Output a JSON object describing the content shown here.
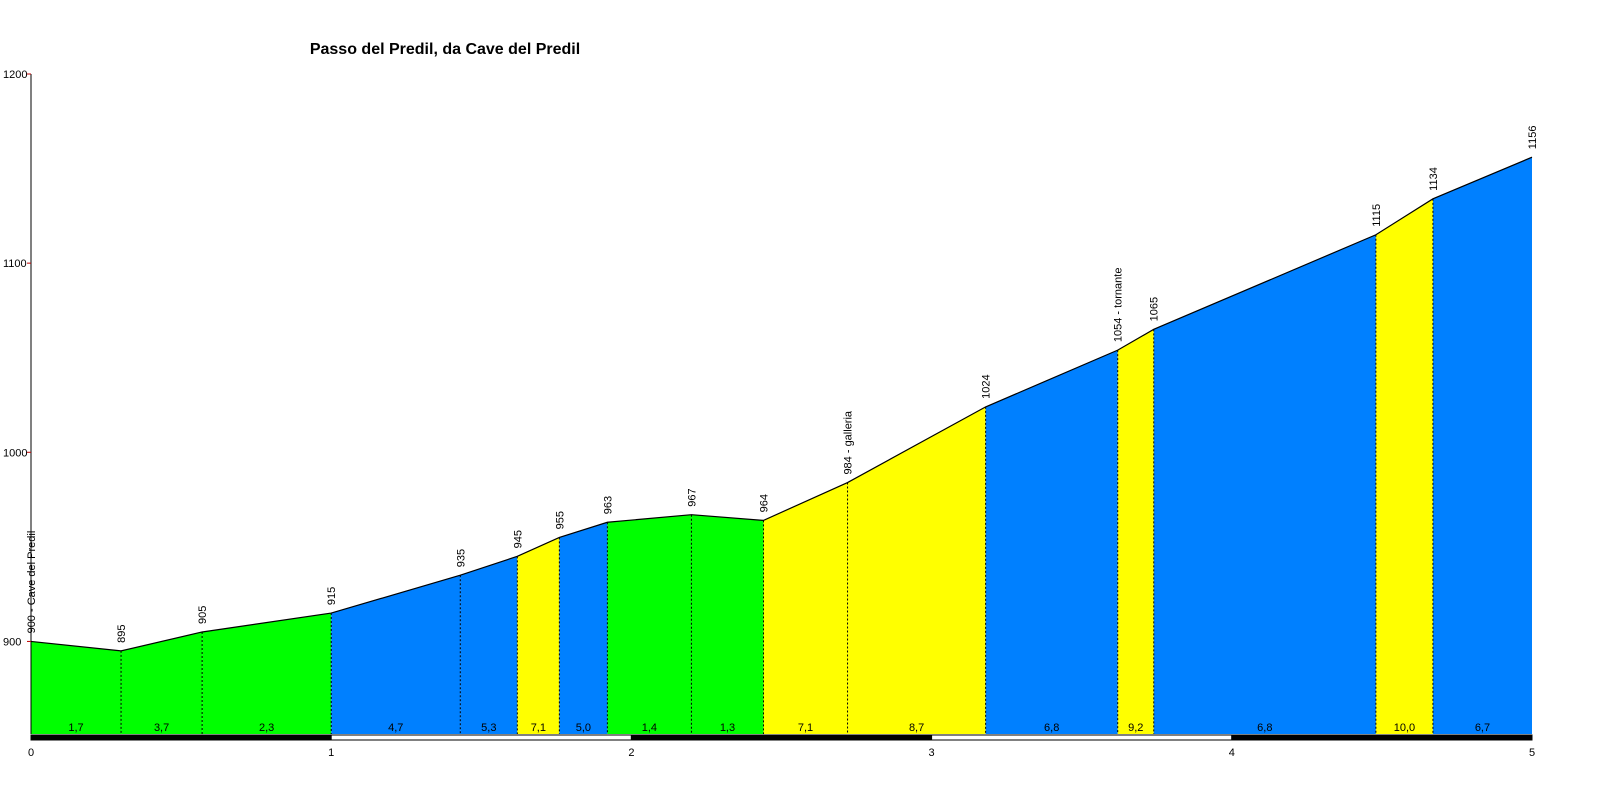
{
  "chart_data": {
    "type": "area",
    "title": "Passo del Predil, da Cave del Predil",
    "xlabel": "",
    "ylabel": "",
    "xlim": [
      0,
      5
    ],
    "ylim": [
      850,
      1200
    ],
    "yticks": [
      "900",
      "1000",
      "1100",
      "1200"
    ],
    "xticks": [
      "0",
      "1",
      "2",
      "3",
      "4",
      "5"
    ],
    "colors": {
      "green": "#00ff00",
      "blue": "#0080ff",
      "yellow": "#ffff00",
      "line": "#000000"
    },
    "profile": [
      {
        "x": 0.0,
        "y": 900,
        "label": "900 - Cave del Predil"
      },
      {
        "x": 0.3,
        "y": 895,
        "label": "895"
      },
      {
        "x": 0.57,
        "y": 905,
        "label": "905"
      },
      {
        "x": 1.0,
        "y": 915,
        "label": "915"
      },
      {
        "x": 1.43,
        "y": 935,
        "label": "935"
      },
      {
        "x": 1.62,
        "y": 945,
        "label": "945"
      },
      {
        "x": 1.76,
        "y": 955,
        "label": "955"
      },
      {
        "x": 1.92,
        "y": 963,
        "label": "963"
      },
      {
        "x": 2.2,
        "y": 967,
        "label": "967"
      },
      {
        "x": 2.44,
        "y": 964,
        "label": "964"
      },
      {
        "x": 2.72,
        "y": 984,
        "label": "984 - galleria"
      },
      {
        "x": 3.18,
        "y": 1024,
        "label": "1024"
      },
      {
        "x": 3.62,
        "y": 1054,
        "label": "1054 - tornante"
      },
      {
        "x": 3.74,
        "y": 1065,
        "label": "1065"
      },
      {
        "x": 4.48,
        "y": 1115,
        "label": "1115"
      },
      {
        "x": 4.67,
        "y": 1134,
        "label": "1134"
      },
      {
        "x": 5.0,
        "y": 1156,
        "label": "1156"
      }
    ],
    "segments": [
      {
        "grade": "1,7",
        "color": "green"
      },
      {
        "grade": "3,7",
        "color": "green"
      },
      {
        "grade": "2,3",
        "color": "green"
      },
      {
        "grade": "4,7",
        "color": "blue"
      },
      {
        "grade": "5,3",
        "color": "blue"
      },
      {
        "grade": "7,1",
        "color": "yellow"
      },
      {
        "grade": "5,0",
        "color": "blue"
      },
      {
        "grade": "1,4",
        "color": "green"
      },
      {
        "grade": "1,3",
        "color": "green"
      },
      {
        "grade": "7,1",
        "color": "yellow"
      },
      {
        "grade": "8,7",
        "color": "yellow"
      },
      {
        "grade": "6,8",
        "color": "blue"
      },
      {
        "grade": "9,2",
        "color": "yellow"
      },
      {
        "grade": "6,8",
        "color": "blue"
      },
      {
        "grade": "10,0",
        "color": "yellow"
      },
      {
        "grade": "6,7",
        "color": "blue"
      }
    ],
    "grid": false
  }
}
